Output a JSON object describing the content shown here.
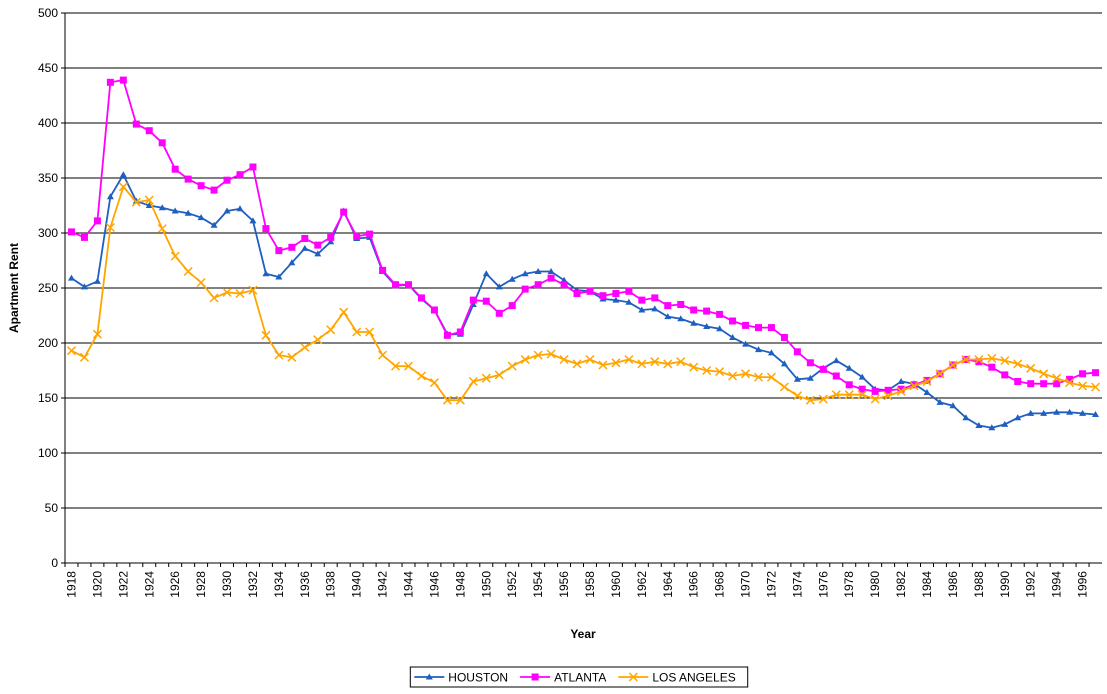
{
  "chart_data": {
    "type": "line",
    "x_label": "Year",
    "y_label": "Apartment Rent",
    "categories": [
      "1918",
      null,
      "1920",
      null,
      "1922",
      null,
      "1924",
      null,
      "1926",
      null,
      "1928",
      null,
      "1930",
      null,
      "1932",
      null,
      "1934",
      null,
      "1936",
      null,
      "1938",
      null,
      "1940",
      null,
      "1942",
      null,
      "1944",
      null,
      "1946",
      null,
      "1948",
      null,
      "1950",
      null,
      "1952",
      null,
      "1954",
      null,
      "1956",
      null,
      "1958",
      null,
      "1960",
      null,
      "1962",
      null,
      "1964",
      null,
      "1966",
      null,
      "1968",
      null,
      "1970",
      null,
      "1972",
      null,
      "1974",
      null,
      "1976",
      null,
      "1978",
      null,
      "1980",
      null,
      "1982",
      null,
      "1984",
      null,
      "1986",
      null,
      "1988",
      null,
      "1990",
      null,
      "1992",
      null,
      "1994",
      null,
      "1996",
      null
    ],
    "series": [
      {
        "name": "HOUSTON",
        "color": "#1f5fbf",
        "marker": "triangle",
        "values": [
          259,
          251,
          256,
          333,
          353,
          329,
          325,
          323,
          320,
          318,
          314,
          307,
          320,
          322,
          311,
          263,
          260,
          273,
          286,
          281,
          292,
          320,
          295,
          296,
          265,
          252,
          253,
          240,
          230,
          208,
          208,
          235,
          263,
          251,
          258,
          263,
          265,
          265,
          257,
          248,
          247,
          240,
          239,
          237,
          230,
          231,
          224,
          222,
          218,
          215,
          213,
          205,
          199,
          194,
          191,
          181,
          167,
          168,
          177,
          184,
          177,
          169,
          158,
          157,
          165,
          163,
          155,
          146,
          143,
          132,
          125,
          123,
          126,
          132,
          136,
          136,
          137,
          137,
          136,
          135
        ]
      },
      {
        "name": "ATLANTA",
        "color": "#ff00ff",
        "marker": "square",
        "values": [
          301,
          296,
          311,
          437,
          439,
          399,
          393,
          382,
          358,
          349,
          343,
          339,
          348,
          353,
          360,
          304,
          284,
          287,
          295,
          289,
          296,
          319,
          297,
          299,
          266,
          253,
          253,
          241,
          230,
          207,
          210,
          239,
          238,
          227,
          234,
          249,
          253,
          259,
          253,
          245,
          247,
          243,
          245,
          247,
          239,
          241,
          234,
          235,
          230,
          229,
          226,
          220,
          216,
          214,
          214,
          205,
          192,
          182,
          176,
          170,
          162,
          158,
          156,
          157,
          158,
          162,
          166,
          172,
          180,
          185,
          183,
          178,
          171,
          165,
          163,
          163,
          163,
          167,
          172,
          173
        ]
      },
      {
        "name": "LOS ANGELES",
        "color": "#ffa500",
        "marker": "x",
        "values": [
          193,
          187,
          208,
          305,
          342,
          328,
          330,
          304,
          279,
          265,
          255,
          241,
          246,
          245,
          248,
          207,
          189,
          187,
          196,
          203,
          212,
          228,
          210,
          210,
          189,
          179,
          179,
          170,
          164,
          148,
          148,
          165,
          168,
          171,
          179,
          185,
          189,
          190,
          185,
          181,
          185,
          180,
          182,
          185,
          181,
          183,
          181,
          183,
          178,
          175,
          174,
          170,
          172,
          169,
          169,
          160,
          152,
          148,
          149,
          153,
          153,
          153,
          149,
          152,
          156,
          161,
          165,
          172,
          180,
          185,
          185,
          186,
          184,
          181,
          177,
          172,
          168,
          164,
          161,
          160
        ]
      }
    ],
    "ylim": [
      0,
      500
    ],
    "yticks": [
      0,
      50,
      100,
      150,
      200,
      250,
      300,
      350,
      400,
      450,
      500
    ],
    "grid": true,
    "legend": "bottom"
  }
}
